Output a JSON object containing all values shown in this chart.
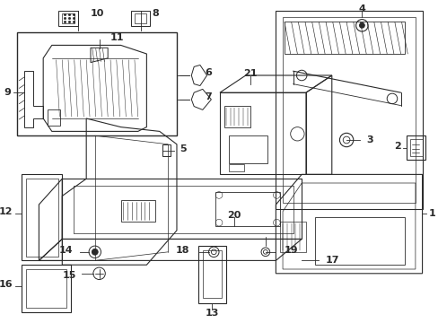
{
  "bg_color": "#ffffff",
  "lc": "#2a2a2a",
  "figsize": [
    4.89,
    3.6
  ],
  "dpi": 100,
  "xlim": [
    0,
    489
  ],
  "ylim": [
    0,
    360
  ]
}
